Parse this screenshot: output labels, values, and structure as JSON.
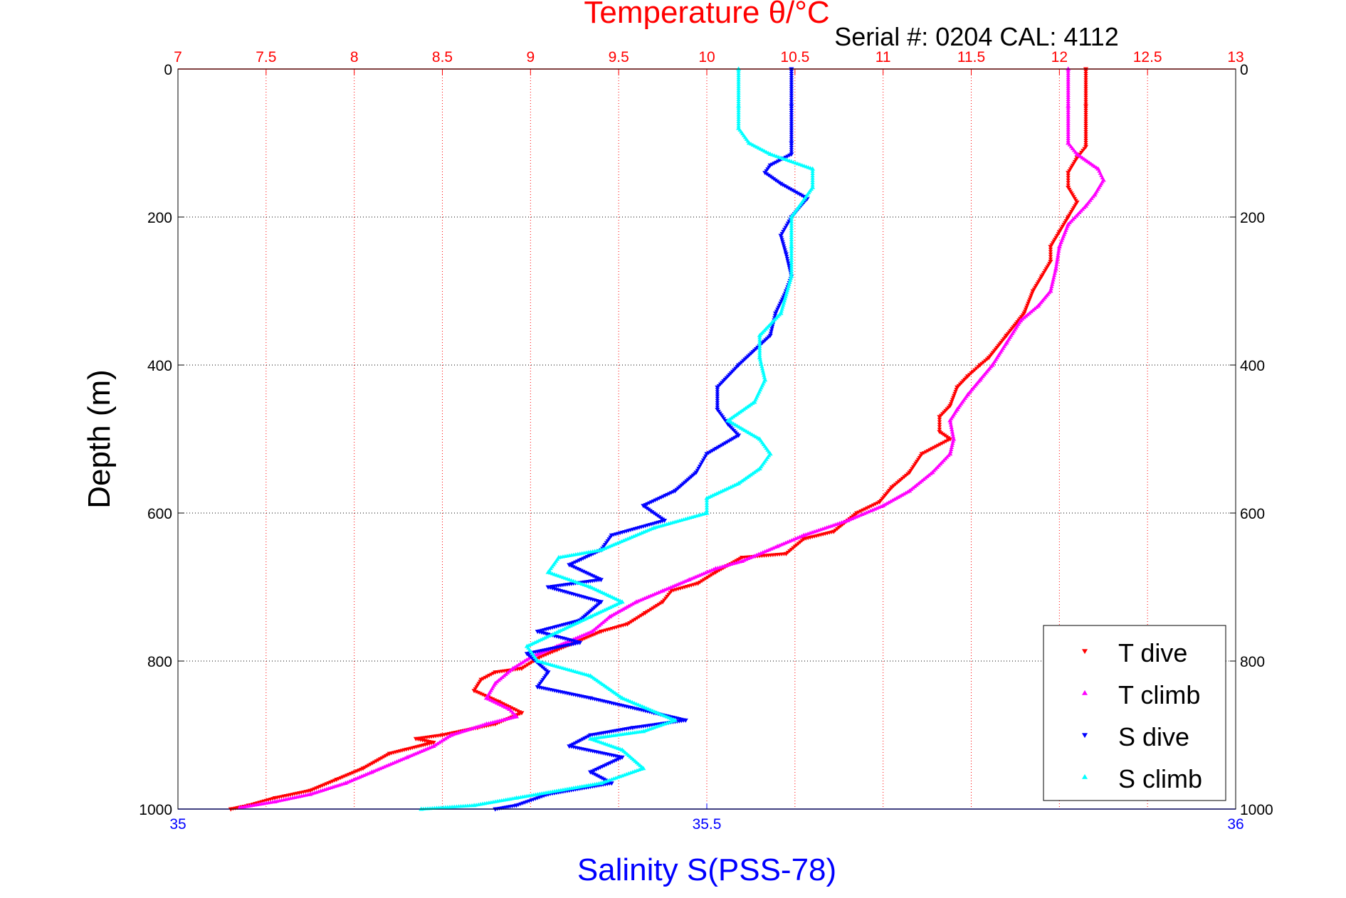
{
  "chart_data": {
    "type": "scatter",
    "title_top": "Temperature θ/°C",
    "serial_text": "Serial #: 0204  CAL: 4112",
    "ylabel": "Depth (m)",
    "xlabel_bottom": "Salinity S(PSS-78)",
    "ylim": [
      0,
      1000
    ],
    "y_reversed": true,
    "top_axis": {
      "label": "Temperature θ/°C",
      "range": [
        7,
        13
      ],
      "ticks": [
        "7",
        "7.5",
        "8",
        "8.5",
        "9",
        "9.5",
        "10",
        "10.5",
        "11",
        "11.5",
        "12",
        "12.5",
        "13"
      ],
      "color": "#ff0000"
    },
    "bottom_axis": {
      "label": "Salinity S(PSS-78)",
      "range": [
        35,
        36
      ],
      "ticks": [
        "35",
        "35.5",
        "36"
      ],
      "color": "#0000ff"
    },
    "depth_ticks": [
      "0",
      "200",
      "400",
      "600",
      "800",
      "1000"
    ],
    "grid": true,
    "legend_position": "bottom-right",
    "series": [
      {
        "name": "T dive",
        "color": "#ff0000",
        "marker": "triangle-down",
        "axis": "top",
        "points": [
          [
            12.15,
            0
          ],
          [
            12.15,
            50
          ],
          [
            12.15,
            105
          ],
          [
            12.1,
            120
          ],
          [
            12.05,
            140
          ],
          [
            12.05,
            160
          ],
          [
            12.1,
            180
          ],
          [
            12.05,
            200
          ],
          [
            12.0,
            220
          ],
          [
            11.95,
            240
          ],
          [
            11.95,
            260
          ],
          [
            11.9,
            280
          ],
          [
            11.85,
            300
          ],
          [
            11.8,
            330
          ],
          [
            11.7,
            360
          ],
          [
            11.6,
            390
          ],
          [
            11.55,
            400
          ],
          [
            11.48,
            415
          ],
          [
            11.42,
            430
          ],
          [
            11.38,
            455
          ],
          [
            11.32,
            470
          ],
          [
            11.32,
            490
          ],
          [
            11.38,
            500
          ],
          [
            11.22,
            520
          ],
          [
            11.15,
            545
          ],
          [
            11.05,
            565
          ],
          [
            10.98,
            585
          ],
          [
            10.85,
            600
          ],
          [
            10.72,
            625
          ],
          [
            10.55,
            635
          ],
          [
            10.45,
            655
          ],
          [
            10.2,
            660
          ],
          [
            10.05,
            680
          ],
          [
            9.95,
            695
          ],
          [
            9.8,
            705
          ],
          [
            9.75,
            720
          ],
          [
            9.65,
            735
          ],
          [
            9.55,
            750
          ],
          [
            9.4,
            760
          ],
          [
            9.25,
            775
          ],
          [
            9.15,
            785
          ],
          [
            9.05,
            795
          ],
          [
            8.95,
            810
          ],
          [
            8.8,
            815
          ],
          [
            8.72,
            825
          ],
          [
            8.68,
            840
          ],
          [
            8.82,
            855
          ],
          [
            8.95,
            870
          ],
          [
            8.8,
            885
          ],
          [
            8.7,
            890
          ],
          [
            8.5,
            900
          ],
          [
            8.35,
            905
          ],
          [
            8.45,
            910
          ],
          [
            8.2,
            925
          ],
          [
            8.05,
            945
          ],
          [
            7.9,
            960
          ],
          [
            7.75,
            975
          ],
          [
            7.55,
            985
          ],
          [
            7.4,
            995
          ],
          [
            7.3,
            1000
          ]
        ]
      },
      {
        "name": "T climb",
        "color": "#ff00ff",
        "marker": "triangle-up",
        "axis": "top",
        "points": [
          [
            12.05,
            0
          ],
          [
            12.05,
            50
          ],
          [
            12.05,
            100
          ],
          [
            12.1,
            115
          ],
          [
            12.22,
            135
          ],
          [
            12.25,
            150
          ],
          [
            12.2,
            170
          ],
          [
            12.15,
            185
          ],
          [
            12.05,
            210
          ],
          [
            12.0,
            240
          ],
          [
            11.98,
            270
          ],
          [
            11.95,
            300
          ],
          [
            11.88,
            320
          ],
          [
            11.78,
            340
          ],
          [
            11.7,
            370
          ],
          [
            11.62,
            400
          ],
          [
            11.55,
            420
          ],
          [
            11.48,
            440
          ],
          [
            11.42,
            460
          ],
          [
            11.38,
            475
          ],
          [
            11.4,
            500
          ],
          [
            11.38,
            520
          ],
          [
            11.28,
            545
          ],
          [
            11.15,
            570
          ],
          [
            11.0,
            590
          ],
          [
            10.8,
            610
          ],
          [
            10.55,
            630
          ],
          [
            10.4,
            645
          ],
          [
            10.2,
            665
          ],
          [
            10.05,
            675
          ],
          [
            9.9,
            690
          ],
          [
            9.75,
            705
          ],
          [
            9.6,
            720
          ],
          [
            9.45,
            740
          ],
          [
            9.35,
            760
          ],
          [
            9.15,
            780
          ],
          [
            9.0,
            795
          ],
          [
            8.9,
            810
          ],
          [
            8.8,
            830
          ],
          [
            8.75,
            850
          ],
          [
            8.88,
            865
          ],
          [
            8.92,
            875
          ],
          [
            8.75,
            885
          ],
          [
            8.55,
            900
          ],
          [
            8.45,
            915
          ],
          [
            8.3,
            930
          ],
          [
            8.1,
            950
          ],
          [
            7.95,
            965
          ],
          [
            7.75,
            980
          ],
          [
            7.55,
            990
          ],
          [
            7.35,
            998
          ]
        ]
      },
      {
        "name": "S dive",
        "color": "#0000ff",
        "marker": "triangle-down",
        "axis": "bottom",
        "points": [
          [
            35.58,
            0
          ],
          [
            35.58,
            50
          ],
          [
            35.58,
            100
          ],
          [
            35.58,
            115
          ],
          [
            35.56,
            130
          ],
          [
            35.555,
            140
          ],
          [
            35.57,
            155
          ],
          [
            35.595,
            175
          ],
          [
            35.58,
            200
          ],
          [
            35.57,
            225
          ],
          [
            35.575,
            250
          ],
          [
            35.58,
            280
          ],
          [
            35.575,
            300
          ],
          [
            35.565,
            330
          ],
          [
            35.56,
            360
          ],
          [
            35.53,
            400
          ],
          [
            35.51,
            430
          ],
          [
            35.51,
            460
          ],
          [
            35.52,
            480
          ],
          [
            35.53,
            495
          ],
          [
            35.5,
            520
          ],
          [
            35.49,
            545
          ],
          [
            35.47,
            570
          ],
          [
            35.44,
            590
          ],
          [
            35.46,
            610
          ],
          [
            35.41,
            630
          ],
          [
            35.4,
            650
          ],
          [
            35.37,
            670
          ],
          [
            35.4,
            690
          ],
          [
            35.35,
            700
          ],
          [
            35.4,
            720
          ],
          [
            35.38,
            745
          ],
          [
            35.34,
            760
          ],
          [
            35.38,
            775
          ],
          [
            35.33,
            790
          ],
          [
            35.35,
            815
          ],
          [
            35.34,
            835
          ],
          [
            35.39,
            850
          ],
          [
            35.45,
            870
          ],
          [
            35.48,
            880
          ],
          [
            35.43,
            890
          ],
          [
            35.39,
            900
          ],
          [
            35.37,
            915
          ],
          [
            35.42,
            930
          ],
          [
            35.39,
            950
          ],
          [
            35.41,
            965
          ],
          [
            35.35,
            980
          ],
          [
            35.32,
            995
          ],
          [
            35.3,
            1000
          ]
        ]
      },
      {
        "name": "S climb",
        "color": "#00ffff",
        "marker": "triangle-up",
        "axis": "bottom",
        "points": [
          [
            35.53,
            0
          ],
          [
            35.53,
            50
          ],
          [
            35.53,
            80
          ],
          [
            35.54,
            100
          ],
          [
            35.56,
            115
          ],
          [
            35.6,
            135
          ],
          [
            35.6,
            160
          ],
          [
            35.58,
            200
          ],
          [
            35.58,
            240
          ],
          [
            35.58,
            280
          ],
          [
            35.57,
            330
          ],
          [
            35.55,
            360
          ],
          [
            35.55,
            390
          ],
          [
            35.555,
            420
          ],
          [
            35.545,
            450
          ],
          [
            35.52,
            475
          ],
          [
            35.55,
            500
          ],
          [
            35.56,
            520
          ],
          [
            35.55,
            540
          ],
          [
            35.53,
            560
          ],
          [
            35.5,
            580
          ],
          [
            35.5,
            600
          ],
          [
            35.45,
            620
          ],
          [
            35.4,
            650
          ],
          [
            35.36,
            660
          ],
          [
            35.35,
            680
          ],
          [
            35.39,
            700
          ],
          [
            35.42,
            720
          ],
          [
            35.39,
            740
          ],
          [
            35.36,
            760
          ],
          [
            35.33,
            780
          ],
          [
            35.34,
            800
          ],
          [
            35.39,
            820
          ],
          [
            35.42,
            850
          ],
          [
            35.47,
            880
          ],
          [
            35.44,
            895
          ],
          [
            35.39,
            905
          ],
          [
            35.42,
            920
          ],
          [
            35.44,
            945
          ],
          [
            35.4,
            965
          ],
          [
            35.32,
            985
          ],
          [
            35.28,
            995
          ],
          [
            35.23,
            1000
          ]
        ]
      }
    ]
  }
}
